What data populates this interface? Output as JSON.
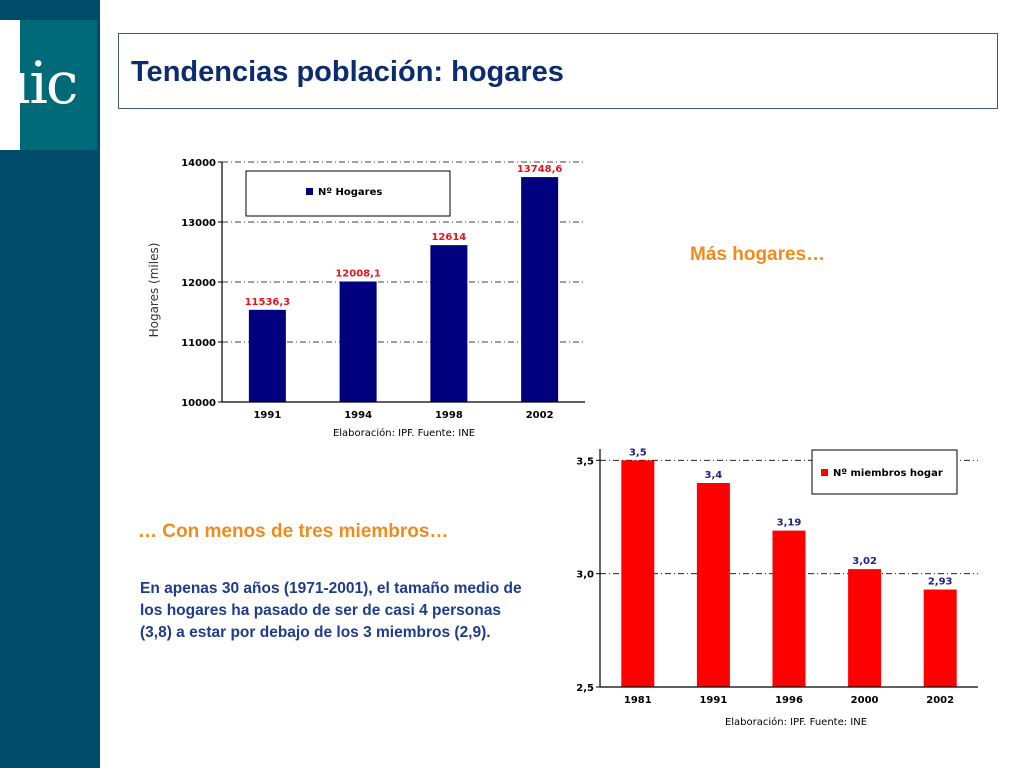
{
  "slide": {
    "title": "Tendencias población: hogares",
    "logo_text": "uic",
    "note_top": "Más hogares…",
    "note_middle": "… Con menos de tres miembros…",
    "paragraph_lines": [
      "En apenas 30 años (1971-2001), el tamaño medio de",
      "los hogares ha pasado de ser de casi 4 personas",
      "(3,8) a estar por debajo de los 3 miembros (2,9)."
    ]
  },
  "colors": {
    "bar_blue": "#00007f",
    "bar_red": "#ff0000",
    "label_red": "#e8141e",
    "label_blue": "#22228c",
    "title_blue": "#0c2c6e",
    "accent_orange": "#f08c1e",
    "sidebar": "#004a6a"
  },
  "chart_data": [
    {
      "type": "bar",
      "categories": [
        "1991",
        "1994",
        "1998",
        "2002"
      ],
      "series": [
        {
          "name": "Nº Hogares",
          "values": [
            11536.3,
            12008.1,
            12614,
            13748.6
          ]
        }
      ],
      "data_labels": [
        "11536,3",
        "12008,1",
        "12614",
        "13748,6"
      ],
      "yticks": [
        "10000",
        "11000",
        "12000",
        "13000",
        "14000"
      ],
      "ylim": [
        10000,
        14000
      ],
      "ylabel": "Hogares (miles)",
      "xlabel": "",
      "source": "Elaboración: IPF. Fuente: INE",
      "legend_position": "top-left",
      "grid": true
    },
    {
      "type": "bar",
      "categories": [
        "1981",
        "1991",
        "1996",
        "2000",
        "2002"
      ],
      "series": [
        {
          "name": "Nº miembros hogar",
          "values": [
            3.5,
            3.4,
            3.19,
            3.02,
            2.93
          ]
        }
      ],
      "data_labels": [
        "3,5",
        "3,4",
        "3,19",
        "3,02",
        "2,93"
      ],
      "yticks": [
        "2,5",
        "3,0",
        "3,5"
      ],
      "ylim": [
        2.5,
        3.55
      ],
      "ylabel": "",
      "xlabel": "",
      "source": "Elaboración: IPF. Fuente: INE",
      "legend_position": "top-right",
      "grid": true
    }
  ]
}
